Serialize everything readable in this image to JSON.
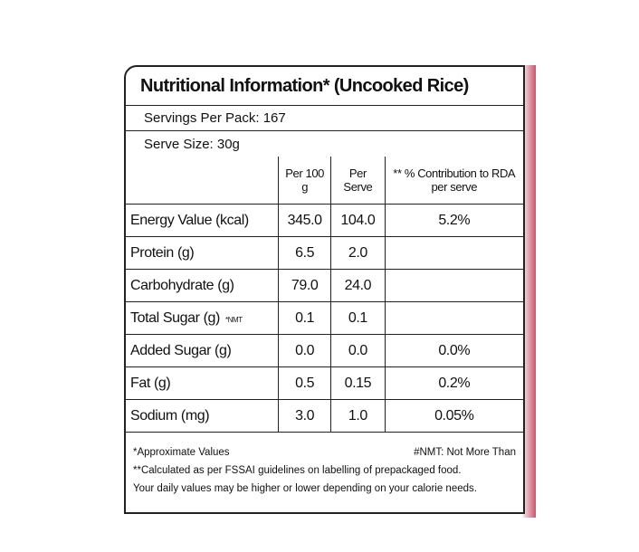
{
  "header": {
    "title": "Nutritional Information* (Uncooked Rice)",
    "servings": "Servings Per Pack: 167",
    "serve_size": "Serve Size: 30g"
  },
  "table": {
    "columns": [
      "Per 100 g",
      "Per Serve",
      "** % Contribution to RDA per serve"
    ],
    "rows": [
      {
        "label": "Energy Value (kcal)",
        "per100": "345.0",
        "serve": "104.0",
        "rda": "5.2%"
      },
      {
        "label": "Protein (g)",
        "per100": "6.5",
        "serve": "2.0"
      },
      {
        "label": "Carbohydrate (g)",
        "per100": "79.0",
        "serve": "24.0"
      },
      {
        "label": "Total Sugar (g)",
        "note": "*NMT",
        "per100": "0.1",
        "serve": "0.1"
      },
      {
        "label": "Added Sugar (g)",
        "per100": "0.0",
        "serve": "0.0",
        "rda": "0.0%"
      },
      {
        "label": "Fat (g)",
        "per100": "0.5",
        "serve": "0.15",
        "rda": "0.2%"
      },
      {
        "label": "Sodium (mg)",
        "per100": "3.0",
        "serve": "1.0",
        "rda": "0.05%"
      }
    ]
  },
  "footer": {
    "approx": "*Approximate Values",
    "nmt": "#NMT: Not More Than",
    "fssai": "**Calculated as per FSSAI guidelines on labelling of prepackaged food.",
    "daily": "Your daily values may be higher or lower depending on your calorie needs."
  }
}
